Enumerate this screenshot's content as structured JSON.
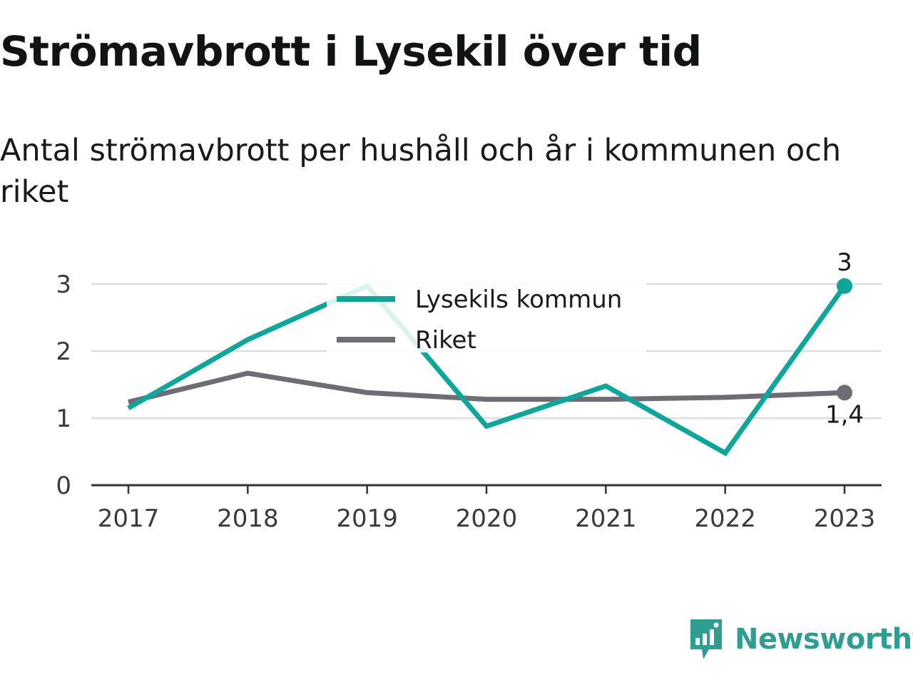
{
  "title": "Strömavbrott i Lysekil över tid",
  "subtitle": "Antal strömavbrott per hushåll och år i kommunen och riket",
  "brand": {
    "name": "Newsworthy",
    "color": "#2f9e91",
    "icon": "newsworthy-logo-icon"
  },
  "chart_data": {
    "type": "line",
    "x": [
      "2017",
      "2018",
      "2019",
      "2020",
      "2021",
      "2022",
      "2023"
    ],
    "ylim": [
      0,
      3
    ],
    "yticks": [
      "0",
      "1",
      "2",
      "3"
    ],
    "grid": true,
    "legend_position": "top-center",
    "series": [
      {
        "name": "Lysekils kommun",
        "color": "#0ea59a",
        "values": [
          1.15,
          2.17,
          2.97,
          0.88,
          1.48,
          0.48,
          2.97
        ],
        "end_label": "3"
      },
      {
        "name": "Riket",
        "color": "#6e6d74",
        "values": [
          1.24,
          1.67,
          1.38,
          1.28,
          1.28,
          1.31,
          1.38
        ],
        "end_label": "1,4"
      }
    ]
  }
}
